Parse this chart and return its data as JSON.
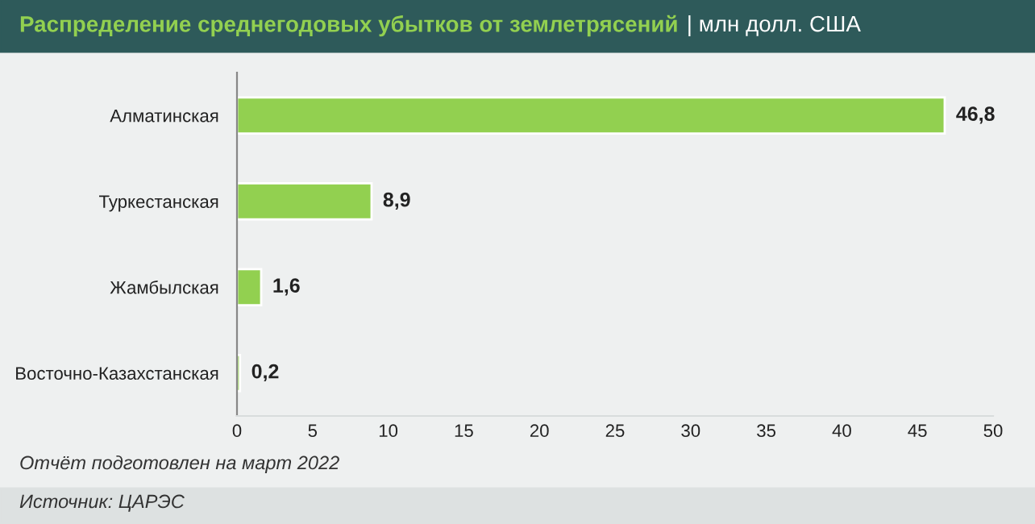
{
  "chart_data": {
    "type": "bar",
    "orientation": "horizontal",
    "title": "Распределение среднегодовых убытков от землетрясений",
    "subtitle": "| млн долл. США",
    "categories": [
      "Алматинская",
      "Туркестанская",
      "Жамбылская",
      "Восточно-Казахстанская"
    ],
    "values": [
      46.8,
      8.9,
      1.6,
      0.2
    ],
    "color": "#92d050",
    "value_labels": [
      "46,8",
      "8,9",
      "1,6",
      "0,2"
    ],
    "xlim": [
      0,
      50
    ],
    "xticks": [
      0,
      5,
      10,
      15,
      20,
      25,
      30,
      35,
      40,
      45,
      50
    ],
    "grid": false,
    "legend": false,
    "annotations": [
      "Отчёт подготовлен на март 2022",
      "Источник: ЦАРЭС"
    ]
  }
}
